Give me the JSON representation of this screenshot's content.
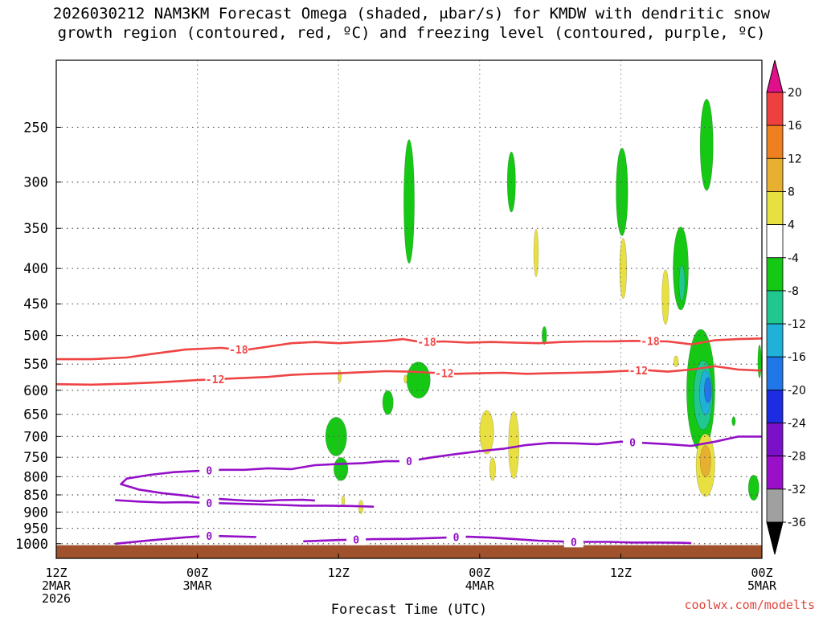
{
  "title_line1": "2026030212 NAM3KM Forecast Omega (shaded, μbar/s) for KMDW with dendritic snow",
  "title_line2": "growth region (contoured, red, ºC) and freezing level (contoured, purple, ºC)",
  "credit": "coolwx.com/modelts",
  "chart_data": {
    "type": "heatmap",
    "xlabel": "Forecast Time (UTC)",
    "ylabel": "",
    "y_scale": "log-pressure",
    "ylim": [
      1050,
      200
    ],
    "xlim": [
      0,
      60
    ],
    "grid": true,
    "y_ticks": [
      250,
      300,
      350,
      400,
      450,
      500,
      550,
      600,
      650,
      700,
      750,
      800,
      850,
      900,
      950,
      1000
    ],
    "x_ticks": [
      {
        "hour": 0,
        "lines": [
          "12Z",
          "2MAR",
          "2026"
        ]
      },
      {
        "hour": 12,
        "lines": [
          "00Z",
          "3MAR"
        ]
      },
      {
        "hour": 24,
        "lines": [
          "12Z"
        ]
      },
      {
        "hour": 36,
        "lines": [
          "00Z",
          "4MAR"
        ]
      },
      {
        "hour": 48,
        "lines": [
          "12Z"
        ]
      },
      {
        "hour": 60,
        "lines": [
          "00Z",
          "5MAR"
        ]
      }
    ],
    "colorbar": {
      "labels": [
        "20",
        "16",
        "12",
        "8",
        "4",
        "-4",
        "-8",
        "-12",
        "-16",
        "-20",
        "-24",
        "-28",
        "-32",
        "-36"
      ],
      "colors": [
        "#e0108a",
        "#ef4040",
        "#ef8020",
        "#e8b030",
        "#e8e040",
        "#ffffff",
        "#14c814",
        "#20c890",
        "#20b0d8",
        "#2078e8",
        "#1c2ce0",
        "#7a10c8",
        "#9a10c8",
        "#a0a0a0",
        "#000000"
      ]
    },
    "terrain_color": "#a0522d",
    "terrain_top_hpa": 1005,
    "contours": [
      {
        "series": "dendritic",
        "color": "#ef4444",
        "label": "-18",
        "points": [
          [
            0,
            541
          ],
          [
            3,
            541
          ],
          [
            6,
            538
          ],
          [
            8,
            532
          ],
          [
            11,
            524
          ],
          [
            14,
            521
          ],
          [
            16,
            525
          ],
          [
            18,
            519
          ],
          [
            20,
            513
          ],
          [
            22,
            511
          ],
          [
            24,
            513
          ],
          [
            26,
            511
          ],
          [
            28,
            509
          ],
          [
            29.5,
            506
          ],
          [
            31,
            511
          ],
          [
            33,
            510
          ],
          [
            35,
            512
          ],
          [
            37,
            511
          ],
          [
            39,
            512
          ],
          [
            41,
            513
          ],
          [
            43,
            511
          ],
          [
            45,
            510
          ],
          [
            47,
            510
          ],
          [
            49,
            509
          ],
          [
            52,
            510
          ],
          [
            54,
            515
          ],
          [
            56,
            508
          ],
          [
            58,
            506
          ],
          [
            60,
            505
          ]
        ],
        "label_hours": [
          15.5,
          31.5,
          50.5
        ]
      },
      {
        "series": "dendritic",
        "color": "#ef4444",
        "label": "-12",
        "points": [
          [
            0,
            588
          ],
          [
            3,
            589
          ],
          [
            6,
            587
          ],
          [
            9,
            584
          ],
          [
            12,
            580
          ],
          [
            15,
            577
          ],
          [
            18,
            574
          ],
          [
            20,
            570
          ],
          [
            22,
            568
          ],
          [
            24,
            567
          ],
          [
            26,
            565
          ],
          [
            28,
            563
          ],
          [
            30,
            564
          ],
          [
            32,
            566
          ],
          [
            34,
            568
          ],
          [
            36,
            567
          ],
          [
            38,
            566
          ],
          [
            40,
            568
          ],
          [
            42,
            567
          ],
          [
            44,
            566
          ],
          [
            46,
            565
          ],
          [
            48,
            563
          ],
          [
            50,
            561
          ],
          [
            52,
            564
          ],
          [
            54,
            560
          ],
          [
            56,
            554
          ],
          [
            58,
            560
          ],
          [
            60,
            562
          ]
        ],
        "label_hours": [
          13.5,
          33,
          49.5
        ]
      },
      {
        "series": "freezing_level",
        "color": "#9410c8",
        "label": "0",
        "points": [
          [
            60,
            700
          ],
          [
            58,
            700
          ],
          [
            56,
            712
          ],
          [
            54,
            722
          ],
          [
            52,
            718
          ],
          [
            50,
            715
          ],
          [
            48,
            712
          ],
          [
            46,
            718
          ],
          [
            44,
            716
          ],
          [
            42,
            715
          ],
          [
            40,
            720
          ],
          [
            38,
            729
          ],
          [
            36,
            735
          ],
          [
            34,
            742
          ],
          [
            32,
            750
          ],
          [
            30,
            760
          ],
          [
            28,
            760
          ],
          [
            26,
            765
          ],
          [
            24,
            767
          ],
          [
            22,
            770
          ],
          [
            20,
            780
          ],
          [
            18,
            778
          ],
          [
            16,
            782
          ],
          [
            14,
            782
          ],
          [
            12,
            785
          ],
          [
            10,
            788
          ],
          [
            8,
            795
          ],
          [
            6,
            805
          ],
          [
            5.5,
            820
          ],
          [
            7,
            835
          ],
          [
            9,
            845
          ],
          [
            11,
            852
          ],
          [
            12,
            857
          ],
          [
            14,
            862
          ],
          [
            16,
            866
          ],
          [
            17.5,
            868
          ],
          [
            19,
            865
          ],
          [
            21,
            864
          ],
          [
            22,
            866
          ]
        ],
        "label_hours": [
          13,
          30,
          49
        ]
      },
      {
        "series": "freezing_level",
        "color": "#9410c8",
        "label": "0",
        "points": [
          [
            5,
            865
          ],
          [
            7,
            869
          ],
          [
            9,
            872
          ],
          [
            11,
            871
          ],
          [
            13,
            873
          ],
          [
            15,
            875
          ],
          [
            17,
            877
          ],
          [
            19,
            879
          ],
          [
            21,
            881
          ],
          [
            23,
            881
          ],
          [
            25,
            882
          ],
          [
            27,
            884
          ]
        ],
        "label_hours": [
          13
        ]
      },
      {
        "series": "freezing_level",
        "color": "#9410c8",
        "label": "0",
        "points": [
          [
            5,
            1000
          ],
          [
            8,
            989
          ],
          [
            11,
            979
          ],
          [
            13,
            974
          ],
          [
            15,
            976
          ],
          [
            17,
            978
          ]
        ],
        "label_hours": [
          13
        ]
      },
      {
        "series": "freezing_level",
        "color": "#9410c8",
        "label": "0",
        "points": [
          [
            21,
            992
          ],
          [
            24,
            988
          ],
          [
            27,
            985
          ],
          [
            30,
            984
          ],
          [
            33,
            980
          ],
          [
            35,
            977
          ],
          [
            37,
            980
          ],
          [
            39,
            985
          ],
          [
            41,
            990
          ],
          [
            43,
            993
          ],
          [
            45,
            994
          ],
          [
            47,
            994
          ],
          [
            49,
            996
          ],
          [
            51,
            996
          ],
          [
            53,
            997
          ],
          [
            54,
            998
          ]
        ],
        "label_hours": [
          25.5,
          34,
          44
        ]
      }
    ],
    "omega_regions": [
      {
        "center": [
          30,
          320
        ],
        "half_width": 0.45,
        "half_depth_hpa": 65,
        "class": -8
      },
      {
        "center": [
          38.7,
          300
        ],
        "half_width": 0.35,
        "half_depth_hpa": 30,
        "class": -8
      },
      {
        "center": [
          48.1,
          310
        ],
        "half_width": 0.5,
        "half_depth_hpa": 45,
        "class": -8
      },
      {
        "center": [
          55.3,
          265
        ],
        "half_width": 0.55,
        "half_depth_hpa": 40,
        "class": -8
      },
      {
        "center": [
          53.1,
          400
        ],
        "half_width": 0.65,
        "half_depth_hpa": 55,
        "class": -8
      },
      {
        "center": [
          53.2,
          420
        ],
        "half_width": 0.25,
        "half_depth_hpa": 25,
        "class": -12
      },
      {
        "center": [
          30.8,
          580
        ],
        "half_width": 1.0,
        "half_depth_hpa": 35,
        "class": -8
      },
      {
        "center": [
          28.2,
          625
        ],
        "half_width": 0.45,
        "half_depth_hpa": 25,
        "class": -8
      },
      {
        "center": [
          23.8,
          700
        ],
        "half_width": 0.9,
        "half_depth_hpa": 45,
        "class": -8
      },
      {
        "center": [
          24.2,
          780
        ],
        "half_width": 0.6,
        "half_depth_hpa": 30,
        "class": -8
      },
      {
        "center": [
          41.5,
          500
        ],
        "half_width": 0.2,
        "half_depth_hpa": 15,
        "class": -8
      },
      {
        "center": [
          54.8,
          600
        ],
        "half_width": 1.2,
        "half_depth_hpa": 120,
        "class": -8
      },
      {
        "center": [
          55.0,
          610
        ],
        "half_width": 0.8,
        "half_depth_hpa": 70,
        "class": -12
      },
      {
        "center": [
          55.2,
          605
        ],
        "half_width": 0.5,
        "half_depth_hpa": 45,
        "class": -16
      },
      {
        "center": [
          55.4,
          600
        ],
        "half_width": 0.3,
        "half_depth_hpa": 25,
        "class": -20
      },
      {
        "center": [
          59.3,
          830
        ],
        "half_width": 0.45,
        "half_depth_hpa": 35,
        "class": -8
      },
      {
        "center": [
          59.8,
          545
        ],
        "half_width": 0.15,
        "half_depth_hpa": 30,
        "class": -8
      },
      {
        "center": [
          57.6,
          665
        ],
        "half_width": 0.15,
        "half_depth_hpa": 10,
        "class": -8
      },
      {
        "center": [
          40.8,
          380
        ],
        "half_width": 0.2,
        "half_depth_hpa": 30,
        "class": 4
      },
      {
        "center": [
          48.2,
          400
        ],
        "half_width": 0.3,
        "half_depth_hpa": 40,
        "class": 4
      },
      {
        "center": [
          51.8,
          440
        ],
        "half_width": 0.3,
        "half_depth_hpa": 40,
        "class": 4
      },
      {
        "center": [
          36.6,
          690
        ],
        "half_width": 0.6,
        "half_depth_hpa": 50,
        "class": 4
      },
      {
        "center": [
          38.9,
          720
        ],
        "half_width": 0.45,
        "half_depth_hpa": 80,
        "class": 4
      },
      {
        "center": [
          37.1,
          780
        ],
        "half_width": 0.25,
        "half_depth_hpa": 30,
        "class": 4
      },
      {
        "center": [
          55.2,
          770
        ],
        "half_width": 0.8,
        "half_depth_hpa": 80,
        "class": 4
      },
      {
        "center": [
          55.2,
          760
        ],
        "half_width": 0.45,
        "half_depth_hpa": 40,
        "class": 8
      },
      {
        "center": [
          25.9,
          885
        ],
        "half_width": 0.2,
        "half_depth_hpa": 20,
        "class": 4
      },
      {
        "center": [
          24.1,
          573
        ],
        "half_width": 0.1,
        "half_depth_hpa": 12,
        "class": 4
      },
      {
        "center": [
          29.7,
          578
        ],
        "half_width": 0.08,
        "half_depth_hpa": 8,
        "class": 4
      },
      {
        "center": [
          24.4,
          867
        ],
        "half_width": 0.12,
        "half_depth_hpa": 15,
        "class": 4
      },
      {
        "center": [
          52.7,
          545
        ],
        "half_width": 0.2,
        "half_depth_hpa": 10,
        "class": 4
      }
    ]
  }
}
